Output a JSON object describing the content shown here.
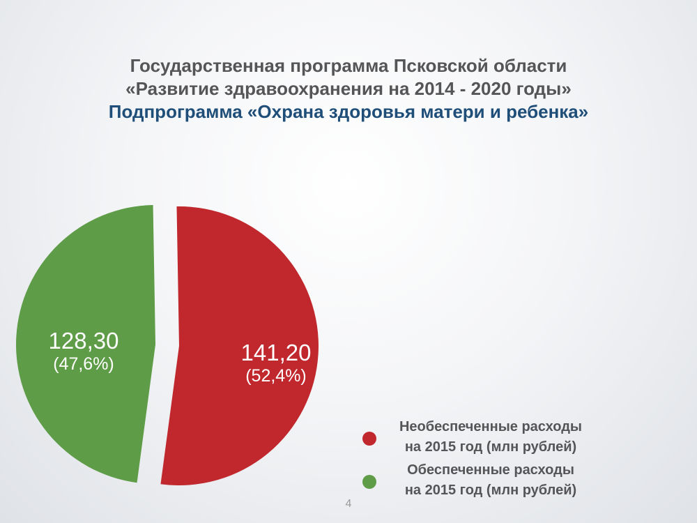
{
  "slide": {
    "title_line1": "Государственная программа Псковской области",
    "title_line2": "«Развитие здравоохранения на 2014 - 2020 годы»",
    "title_line3": "Подпрограмма «Охрана здоровья матери и ребенка»",
    "page_number": "4"
  },
  "colors": {
    "red": "#c0282d",
    "green": "#5e9c48",
    "title": "#555557",
    "subtitle": "#1f4e79"
  },
  "chart_data": {
    "type": "pie",
    "categories": [
      "Необеспеченные расходы на 2015 год  (млн рублей)",
      "Обеспеченные расходы на 2015 год (млн рублей)"
    ],
    "values": [
      141.2,
      128.3
    ],
    "value_labels": [
      "141,20",
      "128,30"
    ],
    "percent_labels": [
      "(52,4%)",
      "(47,6%)"
    ],
    "percents": [
      52.4,
      47.6
    ],
    "exploded": true,
    "legend_position": "bottom-right",
    "legend": [
      {
        "line1": "Необеспеченные расходы",
        "line2": "на 2015 год  (млн рублей)",
        "color": "#c0282d"
      },
      {
        "line1": "Обеспеченные расходы",
        "line2": "на 2015 год (млн рублей)",
        "color": "#5e9c48"
      }
    ]
  }
}
